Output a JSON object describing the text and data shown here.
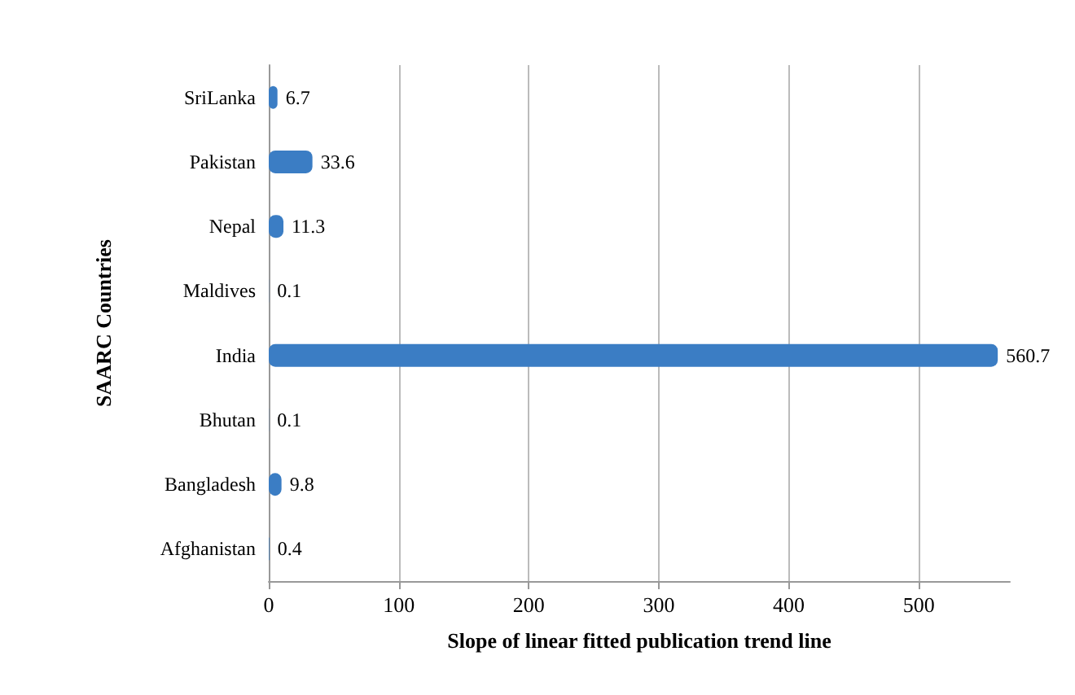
{
  "chart_data": {
    "type": "bar",
    "orientation": "horizontal",
    "xlabel": "Slope of linear fitted publication trend line",
    "ylabel": "SAARC Countries",
    "categories": [
      "SriLanka",
      "Pakistan",
      "Nepal",
      "Maldives",
      "India",
      "Bhutan",
      "Bangladesh",
      "Afghanistan"
    ],
    "values": [
      6.7,
      33.6,
      11.3,
      0.1,
      560.7,
      0.1,
      9.8,
      0.4
    ],
    "color": "#3b7dc4",
    "xlim": [
      0,
      570
    ],
    "xticks": [
      0,
      100,
      200,
      300,
      400,
      500
    ],
    "grid": "x",
    "data_labels": true
  }
}
